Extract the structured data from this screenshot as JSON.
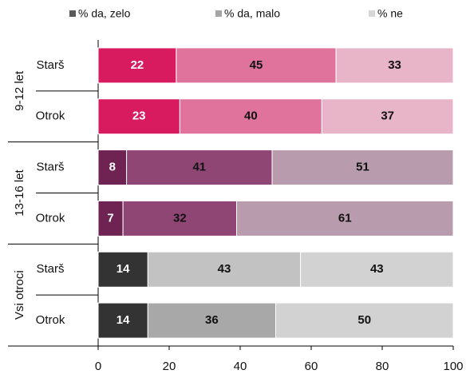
{
  "chart_data": {
    "type": "stacked_hbar",
    "categories": [
      "Starš",
      "Otrok",
      "Starš",
      "Otrok",
      "Starš",
      "Otrok"
    ],
    "groups": [
      "9-12 let",
      "13-16 let",
      "Vsi otroci"
    ],
    "series": [
      {
        "name": "% da, zelo",
        "color": "#5a5a5a",
        "bar_colors": [
          "#d81b5e",
          "#d81b5e",
          "#6e2352",
          "#6e2352",
          "#333333",
          "#333333"
        ],
        "label_color": "#ffffff",
        "values": [
          22,
          23,
          8,
          7,
          14,
          14
        ]
      },
      {
        "name": "% da, malo",
        "color": "#a6a6a6",
        "bar_colors": [
          "#e0739b",
          "#e0739b",
          "#8f4674",
          "#8f4674",
          "#c2c2c2",
          "#a8a8a8"
        ],
        "label_color": "#111111",
        "values": [
          45,
          40,
          41,
          32,
          43,
          36
        ]
      },
      {
        "name": "% ne",
        "color": "#d6d6d6",
        "bar_colors": [
          "#e8b5c8",
          "#e8b5c8",
          "#b99bae",
          "#b99bae",
          "#d2d2d2",
          "#d2d2d2"
        ],
        "label_color": "#111111",
        "values": [
          33,
          37,
          51,
          61,
          43,
          50
        ]
      }
    ],
    "xlim": [
      0,
      100
    ],
    "xticks": [
      0,
      20,
      40,
      60,
      80,
      100
    ]
  }
}
